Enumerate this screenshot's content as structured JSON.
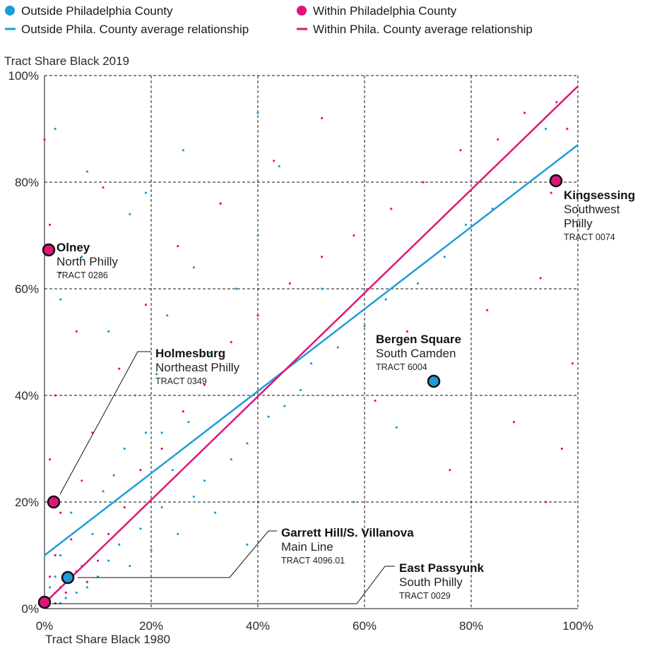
{
  "chart_data": {
    "type": "scatter",
    "xlabel": "Tract Share Black 1980",
    "ylabel": "Tract Share Black 2019",
    "xlim": [
      0,
      100
    ],
    "ylim": [
      0,
      100
    ],
    "x_ticks": [
      "0%",
      "20%",
      "40%",
      "60%",
      "80%",
      "100%"
    ],
    "y_ticks": [
      "0%",
      "20%",
      "40%",
      "60%",
      "80%",
      "100%"
    ],
    "grid": true,
    "legend_position": "top",
    "colors": {
      "outside": "#1e9cd8",
      "within": "#e0157a",
      "outline": "#111111"
    },
    "legend": {
      "outside_points": "Outside Philadelphia County",
      "within_points": "Within Philadelphia County",
      "outside_line": "Outside Phila. County average relationship",
      "within_line": "Within Phila. County average relationship"
    },
    "series": [
      {
        "name": "Outside Philadelphia County",
        "color": "#1e9cd8",
        "points": [
          [
            1,
            1
          ],
          [
            2,
            3
          ],
          [
            3,
            1
          ],
          [
            1,
            4
          ],
          [
            4,
            2
          ],
          [
            5,
            5
          ],
          [
            6,
            3
          ],
          [
            2,
            6
          ],
          [
            8,
            4
          ],
          [
            7,
            8
          ],
          [
            3,
            10
          ],
          [
            10,
            6
          ],
          [
            12,
            9
          ],
          [
            9,
            14
          ],
          [
            14,
            12
          ],
          [
            16,
            8
          ],
          [
            5,
            18
          ],
          [
            18,
            15
          ],
          [
            20,
            11
          ],
          [
            11,
            22
          ],
          [
            13,
            25
          ],
          [
            22,
            19
          ],
          [
            25,
            14
          ],
          [
            24,
            26
          ],
          [
            28,
            21
          ],
          [
            15,
            30
          ],
          [
            30,
            24
          ],
          [
            32,
            18
          ],
          [
            19,
            33
          ],
          [
            35,
            28
          ],
          [
            27,
            35
          ],
          [
            38,
            31
          ],
          [
            17,
            40
          ],
          [
            42,
            36
          ],
          [
            21,
            44
          ],
          [
            45,
            38
          ],
          [
            31,
            48
          ],
          [
            48,
            41
          ],
          [
            12,
            52
          ],
          [
            50,
            46
          ],
          [
            23,
            55
          ],
          [
            55,
            49
          ],
          [
            36,
            60
          ],
          [
            60,
            53
          ],
          [
            28,
            64
          ],
          [
            64,
            58
          ],
          [
            40,
            70
          ],
          [
            70,
            61
          ],
          [
            33,
            76
          ],
          [
            75,
            66
          ],
          [
            19,
            78
          ],
          [
            79,
            72
          ],
          [
            44,
            83
          ],
          [
            84,
            75
          ],
          [
            26,
            86
          ],
          [
            88,
            80
          ],
          [
            40,
            93
          ],
          [
            94,
            90
          ],
          [
            16,
            74
          ],
          [
            58,
            20
          ],
          [
            66,
            34
          ],
          [
            3,
            58
          ],
          [
            7,
            66
          ],
          [
            22,
            33
          ],
          [
            2,
            90
          ],
          [
            8,
            82
          ],
          [
            52,
            60
          ],
          [
            38,
            12
          ]
        ]
      },
      {
        "name": "Within Philadelphia County",
        "color": "#e0157a",
        "points": [
          [
            1,
            2
          ],
          [
            2,
            1
          ],
          [
            3,
            4
          ],
          [
            1,
            6
          ],
          [
            4,
            3
          ],
          [
            6,
            7
          ],
          [
            2,
            10
          ],
          [
            8,
            5
          ],
          [
            5,
            13
          ],
          [
            10,
            9
          ],
          [
            3,
            18
          ],
          [
            12,
            14
          ],
          [
            7,
            24
          ],
          [
            15,
            19
          ],
          [
            1,
            28
          ],
          [
            18,
            26
          ],
          [
            9,
            33
          ],
          [
            22,
            30
          ],
          [
            2,
            40
          ],
          [
            26,
            37
          ],
          [
            14,
            45
          ],
          [
            30,
            42
          ],
          [
            6,
            52
          ],
          [
            35,
            50
          ],
          [
            19,
            57
          ],
          [
            40,
            55
          ],
          [
            3,
            63
          ],
          [
            46,
            61
          ],
          [
            25,
            68
          ],
          [
            52,
            66
          ],
          [
            1,
            72
          ],
          [
            58,
            70
          ],
          [
            33,
            76
          ],
          [
            65,
            75
          ],
          [
            11,
            79
          ],
          [
            71,
            80
          ],
          [
            43,
            84
          ],
          [
            78,
            86
          ],
          [
            0,
            88
          ],
          [
            85,
            88
          ],
          [
            52,
            92
          ],
          [
            90,
            93
          ],
          [
            96,
            95
          ],
          [
            98,
            90
          ],
          [
            95,
            78
          ],
          [
            93,
            62
          ],
          [
            99,
            46
          ],
          [
            97,
            30
          ],
          [
            94,
            20
          ],
          [
            88,
            35
          ],
          [
            76,
            26
          ],
          [
            83,
            56
          ],
          [
            68,
            52
          ],
          [
            62,
            39
          ]
        ]
      }
    ],
    "average_lines": [
      {
        "name": "Outside Phila. County average relationship",
        "color": "#1e9cd8",
        "x": [
          0,
          100
        ],
        "y": [
          10,
          87
        ]
      },
      {
        "name": "Within Phila. County average relationship",
        "color": "#e0157a",
        "x": [
          0,
          100
        ],
        "y": [
          1,
          98
        ]
      }
    ],
    "annotations": [
      {
        "title": "Kingsessing",
        "subtitle_lines": [
          "Southwest",
          "Philly"
        ],
        "tract": "TRACT 0074",
        "x": 97,
        "y": 80,
        "group": "within"
      },
      {
        "title": "Olney",
        "subtitle_lines": [
          "North Philly"
        ],
        "tract": "TRACT 0286",
        "x": 1,
        "y": 67,
        "group": "within"
      },
      {
        "title": "Bergen Square",
        "subtitle_lines": [
          "South Camden"
        ],
        "tract": "TRACT 6004",
        "x": 73,
        "y": 42,
        "group": "outside"
      },
      {
        "title": "Holmesburg",
        "subtitle_lines": [
          "Northeast Philly"
        ],
        "tract": "TRACT 0349",
        "x": 2,
        "y": 20,
        "group": "within"
      },
      {
        "title": "Garrett Hill/S. Villanova",
        "subtitle_lines": [
          "Main Line"
        ],
        "tract": "TRACT 4096.01",
        "x": 6,
        "y": 5,
        "group": "outside"
      },
      {
        "title": "East Passyunk",
        "subtitle_lines": [
          "South Philly"
        ],
        "tract": "TRACT 0029",
        "x": 0,
        "y": 0,
        "group": "within"
      }
    ]
  }
}
